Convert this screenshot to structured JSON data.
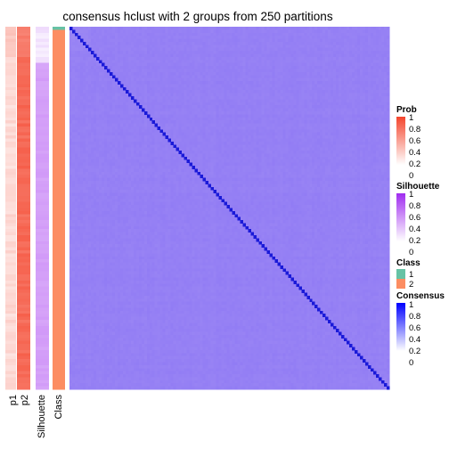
{
  "chart_data": {
    "type": "heatmap",
    "title": "consensus hclust with 2 groups from 250 partitions",
    "n_samples": 120,
    "colors": {
      "prob_high": "#f4452d",
      "prob_low": "#ffffff",
      "silhouette_high": "#a02cf0",
      "silhouette_low": "#ffffff",
      "class_1": "#66c2a5",
      "class_2": "#fc8d62",
      "consensus_high": "#0000ff",
      "consensus_low": "#ffffff",
      "heatmap_base": "#8a74f5",
      "heatmap_base_alt": "#a08cf3",
      "diagonal": "#1a1ad8"
    },
    "column_annotations": [
      {
        "name": "p1",
        "label": "p1",
        "typical_value": 0.2,
        "first_value": 0.3,
        "top_rows_value": 0.3
      },
      {
        "name": "p2",
        "label": "p2",
        "typical_value": 0.8,
        "first_value": 0.7,
        "top_rows_value": 0.7
      },
      {
        "name": "silhouette",
        "label": "Silhouette",
        "typical_value": 0.45,
        "top_rows_value": 0.05
      },
      {
        "name": "class",
        "label": "Class",
        "first_value": 1,
        "typical_value": 2
      }
    ],
    "consensus": {
      "diagonal_value": 1,
      "off_diagonal_mean": 0.55,
      "off_diagonal_range": [
        0.4,
        0.62
      ]
    },
    "legends": [
      {
        "title": "Prob",
        "type": "continuous",
        "ticks": [
          "1",
          "0.8",
          "0.6",
          "0.4",
          "0.2",
          "0"
        ]
      },
      {
        "title": "Silhouette",
        "type": "continuous",
        "ticks": [
          "1",
          "0.8",
          "0.6",
          "0.4",
          "0.2",
          "0"
        ]
      },
      {
        "title": "Class",
        "type": "discrete",
        "items": [
          "1",
          "2"
        ]
      },
      {
        "title": "Consensus",
        "type": "continuous",
        "ticks": [
          "1",
          "0.8",
          "0.6",
          "0.4",
          "0.2",
          "0"
        ]
      }
    ]
  }
}
